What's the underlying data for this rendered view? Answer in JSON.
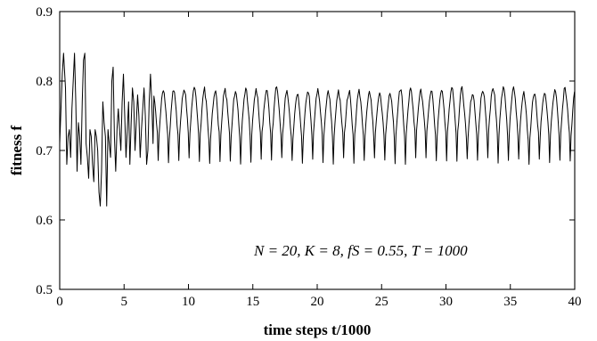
{
  "chart_data": {
    "type": "line",
    "xlabel": "time steps t/1000",
    "ylabel": "fitness f",
    "xlim": [
      0,
      40
    ],
    "ylim": [
      0.5,
      0.9
    ],
    "xticks": [
      "0",
      "5",
      "10",
      "15",
      "20",
      "25",
      "30",
      "35",
      "40"
    ],
    "yticks": [
      "0.5",
      "0.6",
      "0.7",
      "0.8",
      "0.9"
    ],
    "annotation": "N = 20, K = 8, fS = 0.55, T = 1000",
    "grid": false,
    "series": [
      {
        "color": "#000000",
        "x": [
          0.0,
          0.1,
          0.2,
          0.3,
          0.45,
          0.55,
          0.65,
          0.75,
          0.85,
          0.95,
          1.05,
          1.15,
          1.25,
          1.35,
          1.45,
          1.55,
          1.65,
          1.75,
          1.85,
          1.95,
          2.05,
          2.15,
          2.25,
          2.35,
          2.45,
          2.55,
          2.65,
          2.75,
          2.85,
          2.95,
          3.05,
          3.15,
          3.25,
          3.35,
          3.45,
          3.55,
          3.65,
          3.75,
          3.85,
          3.95,
          4.05,
          4.15,
          4.25,
          4.35,
          4.45,
          4.55,
          4.65,
          4.75,
          4.85,
          4.95,
          5.05,
          5.15,
          5.25,
          5.35,
          5.45,
          5.55,
          5.65,
          5.75,
          5.85,
          5.95,
          6.05,
          6.15,
          6.25,
          6.35,
          6.45,
          6.55,
          6.65,
          6.75,
          6.85,
          6.95,
          7.05,
          7.15,
          7.25
        ],
        "y": [
          0.71,
          0.76,
          0.81,
          0.84,
          0.79,
          0.68,
          0.72,
          0.73,
          0.69,
          0.76,
          0.8,
          0.84,
          0.77,
          0.67,
          0.74,
          0.72,
          0.68,
          0.77,
          0.83,
          0.84,
          0.71,
          0.69,
          0.66,
          0.73,
          0.72,
          0.68,
          0.655,
          0.73,
          0.72,
          0.7,
          0.64,
          0.62,
          0.67,
          0.77,
          0.74,
          0.72,
          0.62,
          0.73,
          0.71,
          0.69,
          0.8,
          0.82,
          0.72,
          0.67,
          0.73,
          0.76,
          0.73,
          0.7,
          0.77,
          0.81,
          0.75,
          0.69,
          0.73,
          0.77,
          0.68,
          0.74,
          0.79,
          0.77,
          0.7,
          0.74,
          0.78,
          0.75,
          0.69,
          0.73,
          0.76,
          0.79,
          0.75,
          0.68,
          0.7,
          0.77,
          0.81,
          0.77,
          0.71
        ],
        "periodic_from": 7.25,
        "period": 0.8,
        "oscillation_peak": 0.792,
        "oscillation_trough": 0.68
      }
    ]
  }
}
